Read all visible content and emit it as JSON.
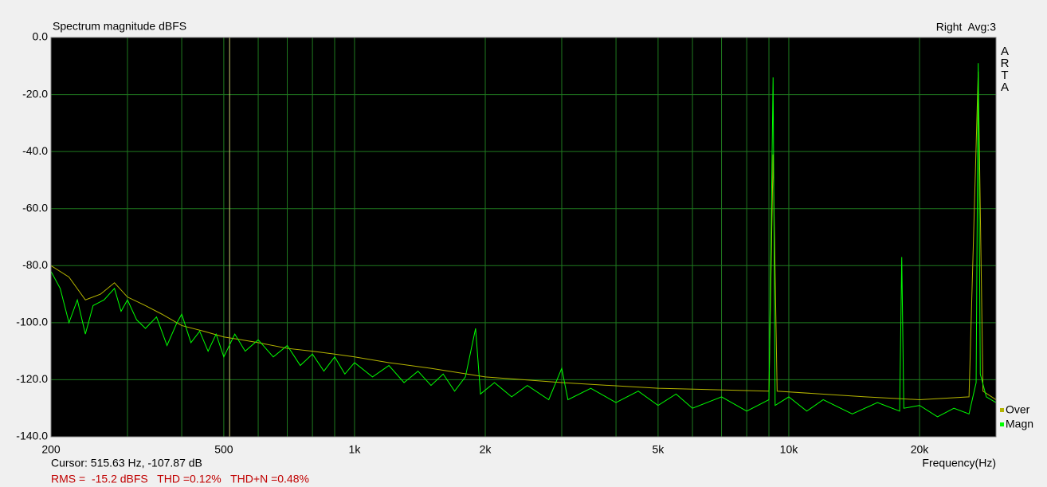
{
  "chart_data": {
    "type": "line",
    "title": "Spectrum magnitude dBFS",
    "channel_label": "Right  Avg:3",
    "logo": "ARTA",
    "x_label": "Frequency(Hz)",
    "cursor": {
      "label": "Cursor: 515.63 Hz, -107.87 dB",
      "x": 515.63,
      "color": "#c8c870"
    },
    "stats": "RMS =  -15.2 dBFS   THD =0.12%   THD+N =0.48%",
    "x_scale": "log",
    "xlim": [
      200,
      30000
    ],
    "ylim": [
      -140,
      0
    ],
    "xticks": [
      200,
      500,
      {
        "value": 1000,
        "label": "1k"
      },
      {
        "value": 2000,
        "label": "2k"
      },
      {
        "value": 5000,
        "label": "5k"
      },
      {
        "value": 10000,
        "label": "10k"
      },
      {
        "value": 20000,
        "label": "20k"
      }
    ],
    "x_minor_ticks": [
      300,
      400,
      600,
      700,
      800,
      900,
      3000,
      4000,
      6000,
      7000,
      8000,
      9000,
      30000
    ],
    "yticks": [
      {
        "value": 0,
        "label": "0.0"
      },
      {
        "value": -20,
        "label": "-20.0"
      },
      {
        "value": -40,
        "label": "-40.0"
      },
      {
        "value": -60,
        "label": "-60.0"
      },
      {
        "value": -80,
        "label": "-80.0"
      },
      {
        "value": -100,
        "label": "-100.0"
      },
      {
        "value": -120,
        "label": "-120.0"
      },
      {
        "value": -140,
        "label": "-140.0"
      }
    ],
    "grid": true,
    "grid_color": "#1f7a1f",
    "plot_background": "#000000",
    "legend": "right",
    "series": [
      {
        "name": "Over",
        "color": "#b4b400",
        "x": [
          200,
          220,
          240,
          260,
          280,
          300,
          330,
          360,
          400,
          450,
          500,
          550,
          600,
          700,
          800,
          900,
          1000,
          1200,
          1500,
          2000,
          3000,
          5000,
          9000,
          9200,
          9400,
          15000,
          20000,
          26000,
          27300,
          28000,
          30000
        ],
        "values": [
          -80,
          -84,
          -92,
          -90,
          -86,
          -91,
          -94,
          -97,
          -101,
          -103,
          -105,
          -106,
          -107,
          -109,
          -110,
          -111,
          -112,
          -114,
          -116,
          -119,
          -121,
          -123,
          -124,
          -41,
          -124,
          -126,
          -127,
          -126,
          -12,
          -124,
          -127
        ]
      },
      {
        "name": "Magn",
        "color": "#00ff00",
        "x": [
          200,
          210,
          220,
          230,
          240,
          250,
          265,
          280,
          290,
          300,
          315,
          330,
          350,
          370,
          390,
          400,
          420,
          440,
          460,
          480,
          500,
          530,
          560,
          600,
          650,
          700,
          750,
          800,
          850,
          900,
          950,
          1000,
          1100,
          1200,
          1300,
          1400,
          1500,
          1600,
          1700,
          1800,
          1900,
          1950,
          2100,
          2300,
          2500,
          2800,
          3000,
          3100,
          3500,
          4000,
          4500,
          5000,
          5500,
          6000,
          7000,
          8000,
          9000,
          9200,
          9300,
          10000,
          11000,
          12000,
          14000,
          16000,
          18000,
          18200,
          18400,
          20000,
          22000,
          24000,
          26000,
          27000,
          27300,
          27600,
          28500,
          30000
        ],
        "values": [
          -82,
          -88,
          -100,
          -92,
          -104,
          -94,
          -92,
          -88,
          -96,
          -92,
          -99,
          -102,
          -98,
          -108,
          -100,
          -97,
          -107,
          -103,
          -110,
          -104,
          -112,
          -104,
          -110,
          -106,
          -112,
          -108,
          -115,
          -111,
          -117,
          -112,
          -118,
          -114,
          -119,
          -115,
          -121,
          -117,
          -122,
          -118,
          -124,
          -119,
          -102,
          -125,
          -121,
          -126,
          -122,
          -127,
          -116,
          -127,
          -123,
          -128,
          -124,
          -129,
          -125,
          -130,
          -126,
          -131,
          -127,
          -14,
          -129,
          -126,
          -131,
          -127,
          -132,
          -128,
          -131,
          -77,
          -130,
          -129,
          -133,
          -130,
          -132,
          -121,
          -9,
          -118,
          -126,
          -128
        ]
      }
    ]
  }
}
